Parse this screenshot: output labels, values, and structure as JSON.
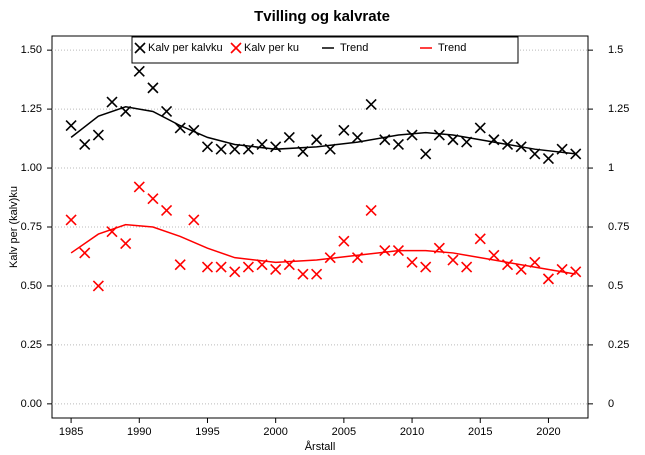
{
  "chart_data": {
    "type": "scatter",
    "title": "Tvilling og kalvrate",
    "x_label": "Årstall",
    "y_label": "Kalv per (kalv)ku",
    "xlim": [
      1983.6,
      2022.9
    ],
    "xticks": [
      1985,
      1990,
      1995,
      2000,
      2005,
      2010,
      2015,
      2020
    ],
    "ylim": [
      -0.06,
      1.56
    ],
    "yticks": [
      {
        "value": 0,
        "label": "0.00"
      },
      {
        "value": 0.25,
        "label": "0.25"
      },
      {
        "value": 0.5,
        "label": "0.50"
      },
      {
        "value": 0.75,
        "label": "0.75"
      },
      {
        "value": 1,
        "label": "1.00"
      },
      {
        "value": 1.25,
        "label": "1.25"
      },
      {
        "value": 1.5,
        "label": "1.50"
      }
    ],
    "y2lim": [
      -0.06,
      1.56
    ],
    "y2ticks": [
      0,
      0.25,
      0.5,
      0.75,
      1,
      1.25,
      1.5
    ],
    "grid": "y",
    "legend": "top",
    "series": [
      {
        "name": "Kalv per kalvku",
        "color": "#000000",
        "mode": "markers",
        "x": [
          1985,
          1986,
          1987,
          1988,
          1989,
          1990,
          1991,
          1992,
          1993,
          1994,
          1995,
          1996,
          1997,
          1998,
          1999,
          2000,
          2001,
          2002,
          2003,
          2004,
          2005,
          2006,
          2007,
          2008,
          2009,
          2010,
          2011,
          2012,
          2013,
          2014,
          2015,
          2016,
          2017,
          2018,
          2019,
          2020,
          2021,
          2022
        ],
        "values": [
          1.18,
          1.1,
          1.14,
          1.28,
          1.24,
          1.41,
          1.34,
          1.24,
          1.17,
          1.16,
          1.09,
          1.08,
          1.08,
          1.08,
          1.1,
          1.09,
          1.13,
          1.07,
          1.12,
          1.08,
          1.16,
          1.13,
          1.27,
          1.12,
          1.1,
          1.14,
          1.06,
          1.14,
          1.12,
          1.11,
          1.17,
          1.12,
          1.1,
          1.09,
          1.06,
          1.04,
          1.08,
          1.06
        ]
      },
      {
        "name": "Kalv per ku",
        "color": "#ff0000",
        "mode": "markers",
        "x": [
          1985,
          1986,
          1987,
          1988,
          1989,
          1990,
          1991,
          1992,
          1993,
          1994,
          1995,
          1996,
          1997,
          1998,
          1999,
          2000,
          2001,
          2002,
          2003,
          2004,
          2005,
          2006,
          2007,
          2008,
          2009,
          2010,
          2011,
          2012,
          2013,
          2014,
          2015,
          2016,
          2017,
          2018,
          2019,
          2020,
          2021,
          2022
        ],
        "values": [
          0.78,
          0.64,
          0.5,
          0.73,
          0.68,
          0.92,
          0.87,
          0.82,
          0.59,
          0.78,
          0.58,
          0.58,
          0.56,
          0.58,
          0.59,
          0.57,
          0.59,
          0.55,
          0.55,
          0.62,
          0.69,
          0.62,
          0.82,
          0.65,
          0.65,
          0.6,
          0.58,
          0.66,
          0.61,
          0.58,
          0.7,
          0.63,
          0.59,
          0.57,
          0.6,
          0.53,
          0.57,
          0.56
        ]
      },
      {
        "name": "Trend",
        "color": "#000000",
        "mode": "line",
        "x": [
          1985,
          1987,
          1989,
          1991,
          1993,
          1995,
          1997,
          2000,
          2003,
          2006,
          2009,
          2011,
          2013,
          2016,
          2019,
          2022
        ],
        "values": [
          1.13,
          1.22,
          1.26,
          1.24,
          1.18,
          1.13,
          1.1,
          1.08,
          1.09,
          1.11,
          1.14,
          1.15,
          1.14,
          1.11,
          1.08,
          1.06
        ]
      },
      {
        "name": "Trend",
        "color": "#ff0000",
        "mode": "line",
        "x": [
          1985,
          1987,
          1989,
          1991,
          1993,
          1995,
          1997,
          2000,
          2003,
          2006,
          2009,
          2011,
          2013,
          2016,
          2019,
          2022
        ],
        "values": [
          0.64,
          0.72,
          0.76,
          0.75,
          0.71,
          0.66,
          0.62,
          0.6,
          0.61,
          0.63,
          0.65,
          0.65,
          0.64,
          0.61,
          0.58,
          0.55
        ]
      }
    ]
  }
}
